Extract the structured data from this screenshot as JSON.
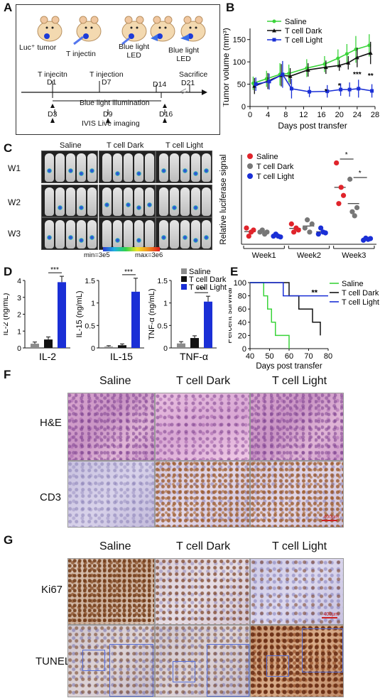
{
  "panels": {
    "A": {
      "letter": "A",
      "labels": {
        "luc_tumor": "Luc⁺ tumor",
        "t_injectin": "T injectin",
        "blue_light_led_1": "Blue light\nLED",
        "blue_light_led_2": "Blue light\nLED",
        "t_injecitn": "T injecitn",
        "d1": "D1",
        "t_injection": "T injection",
        "d7": "D7",
        "sacrifice": "Sacrifice",
        "d21": "D21",
        "d14": "D14",
        "blue_light_illumination": "Blue light illumination",
        "d3": "D3",
        "d9": "D9",
        "d16": "D16",
        "ivis": "IVIS Live imaging"
      }
    },
    "B": {
      "letter": "B",
      "legend": [
        "Saline",
        "T cell Dark",
        "T cell Light"
      ]
    },
    "C": {
      "letter": "C",
      "img_cols": [
        "Saline",
        "T cell Dark",
        "T cell Light"
      ],
      "img_rows": [
        "W1",
        "W2",
        "W3"
      ],
      "scale_min": "min=3e5",
      "scale_max": "max=3e6",
      "legend": [
        "Saline",
        "T cell Dark",
        "T cell Light"
      ]
    },
    "D": {
      "letter": "D",
      "legend": [
        "Saline",
        "T cell Dark",
        "T cell Light"
      ]
    },
    "E": {
      "letter": "E",
      "legend": [
        "Saline",
        "T cell Dark",
        "T cell Light"
      ]
    },
    "F": {
      "letter": "F",
      "cols": [
        "Saline",
        "T cell Dark",
        "T cell Light"
      ],
      "rows": [
        "H&E",
        "CD3"
      ],
      "scalebar": "400μm"
    },
    "G": {
      "letter": "G",
      "cols": [
        "Saline",
        "T cell Dark",
        "T cell Light"
      ],
      "rows": [
        "Ki67",
        "TUNEL"
      ],
      "scalebar": "400μm"
    }
  },
  "colors": {
    "saline": "#3ad43a",
    "dark": "#111111",
    "light": "#1a2fd6",
    "red": "#e0242b",
    "grey": "#777777"
  },
  "chart_data": [
    {
      "panel": "B",
      "type": "line",
      "ylabel": "Tumor volume (mm³)",
      "xlabel": "Days post transfer",
      "x": [
        1,
        4,
        7,
        9,
        13,
        17,
        20,
        22,
        24,
        27
      ],
      "xticks": [
        0,
        4,
        8,
        12,
        16,
        20,
        24,
        28
      ],
      "yticks": [
        0,
        50,
        100,
        150
      ],
      "xlim": [
        0,
        28
      ],
      "ylim": [
        0,
        175
      ],
      "series": [
        {
          "name": "Saline",
          "values": [
            52,
            62,
            72,
            74,
            86,
            95,
            108,
            118,
            128,
            137
          ],
          "err": [
            15,
            18,
            25,
            20,
            20,
            18,
            20,
            22,
            30,
            25
          ]
        },
        {
          "name": "T cell Dark",
          "values": [
            46,
            57,
            70,
            68,
            82,
            88,
            92,
            98,
            110,
            120
          ],
          "err": [
            18,
            18,
            25,
            18,
            15,
            15,
            12,
            15,
            22,
            25
          ]
        },
        {
          "name": "T cell Light",
          "values": [
            50,
            56,
            72,
            40,
            33,
            34,
            38,
            38,
            40,
            35
          ],
          "err": [
            15,
            18,
            30,
            22,
            12,
            14,
            14,
            16,
            20,
            15
          ]
        }
      ],
      "annotations": [
        "*",
        "*",
        "*",
        "***",
        "**"
      ]
    },
    {
      "panel": "C",
      "type": "scatter",
      "ylabel": "Relative luciferase signal",
      "categories": [
        "Week1",
        "Week2",
        "Week3"
      ],
      "series": [
        {
          "name": "Saline",
          "values": [
            [
              4,
              2,
              3,
              3.5
            ],
            [
              5,
              3,
              4,
              3.5
            ],
            [
              20,
              10,
              14,
              12
            ]
          ]
        },
        {
          "name": "T cell Dark",
          "values": [
            [
              3,
              3.5,
              2.5,
              3
            ],
            [
              4,
              6,
              3,
              5
            ],
            [
              16,
              8,
              7,
              9
            ]
          ]
        },
        {
          "name": "T cell Light",
          "values": [
            [
              2,
              2.5,
              2,
              1.8
            ],
            [
              2.5,
              4,
              3,
              2.8
            ],
            [
              1,
              1.5,
              1.2,
              1.4
            ]
          ]
        }
      ],
      "annotations": [
        "*",
        "*"
      ]
    },
    {
      "panel": "D",
      "type": "bar",
      "subplots": [
        {
          "ylabel": "IL-2 (ng/mL)",
          "xlabel": "IL-2",
          "yticks": [
            0,
            1,
            2,
            3,
            4
          ],
          "values": [
            0.25,
            0.5,
            3.9
          ],
          "err": [
            0.1,
            0.15,
            0.35
          ],
          "sig": "***"
        },
        {
          "ylabel": "IL-15 (ng/mL)",
          "xlabel": "IL-15",
          "yticks": [
            0,
            0.5,
            1,
            1.5
          ],
          "values": [
            0.03,
            0.06,
            1.25
          ],
          "err": [
            0.02,
            0.03,
            0.3
          ],
          "sig": "***"
        },
        {
          "ylabel": "TNF-α (ng/mL)",
          "xlabel": "TNF-α",
          "yticks": [
            0,
            0.5,
            1,
            1.5
          ],
          "values": [
            0.1,
            0.22,
            1.03
          ],
          "err": [
            0.04,
            0.05,
            0.12
          ],
          "sig": "***"
        }
      ]
    },
    {
      "panel": "E",
      "type": "line",
      "ylabel": "Percent survival",
      "xlabel": "Days post transfer",
      "xticks": [
        40,
        50,
        60,
        70,
        80
      ],
      "yticks": [
        0,
        20,
        40,
        60,
        80,
        100
      ],
      "xlim": [
        40,
        80
      ],
      "ylim": [
        0,
        100
      ],
      "series": [
        {
          "name": "Saline",
          "x": [
            40,
            47,
            47,
            49,
            49,
            51,
            51,
            53,
            53,
            60,
            60
          ],
          "values": [
            100,
            100,
            80,
            80,
            60,
            60,
            40,
            40,
            20,
            20,
            0
          ]
        },
        {
          "name": "T cell Dark",
          "x": [
            40,
            60,
            60,
            65,
            65,
            72,
            72,
            76,
            76
          ],
          "values": [
            100,
            100,
            80,
            80,
            60,
            60,
            40,
            40,
            20
          ]
        },
        {
          "name": "T cell Light",
          "x": [
            40,
            57,
            57,
            80
          ],
          "values": [
            100,
            100,
            80,
            80
          ]
        }
      ],
      "annotations": [
        "**"
      ]
    }
  ]
}
